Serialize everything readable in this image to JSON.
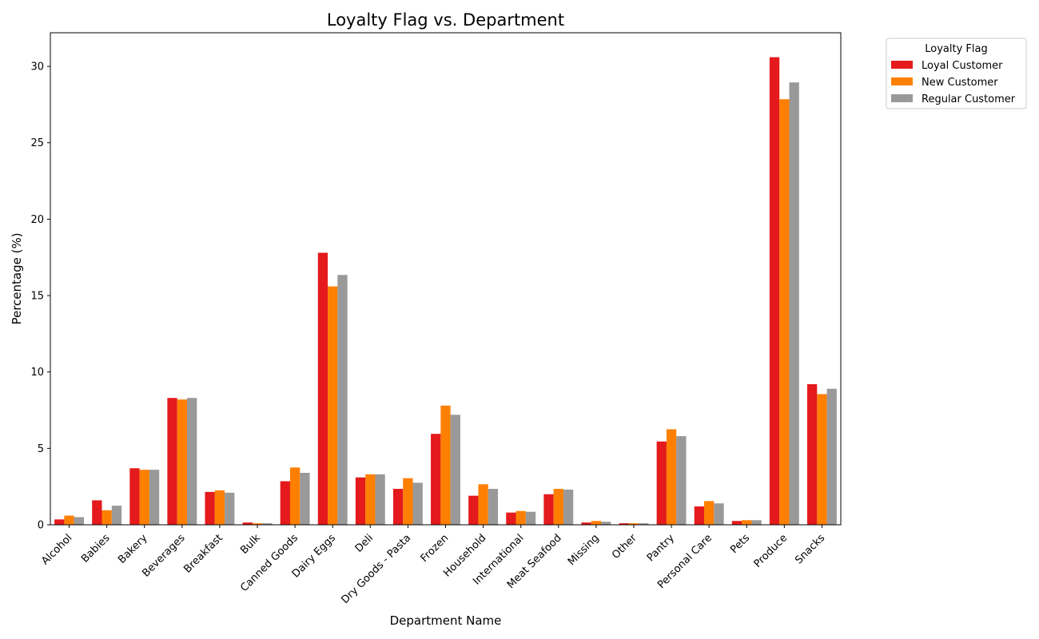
{
  "chart_data": {
    "type": "bar",
    "title": "Loyalty Flag vs. Department",
    "xlabel": "Department Name",
    "ylabel": "Percentage (%)",
    "ylim": [
      0,
      32.2
    ],
    "yticks": [
      0,
      5,
      10,
      15,
      20,
      25,
      30
    ],
    "grid": false,
    "legend": {
      "title": "Loyalty Flag",
      "placement": "outside-top-right"
    },
    "categories": [
      "Alcohol",
      "Babies",
      "Bakery",
      "Beverages",
      "Breakfast",
      "Bulk",
      "Canned Goods",
      "Dairy Eggs",
      "Deli",
      "Dry Goods - Pasta",
      "Frozen",
      "Household",
      "International",
      "Meat Seafood",
      "Missing",
      "Other",
      "Pantry",
      "Personal Care",
      "Pets",
      "Produce",
      "Snacks"
    ],
    "series": [
      {
        "name": "Loyal Customer",
        "color": "#e41a1c",
        "values": [
          0.35,
          1.6,
          3.7,
          8.3,
          2.15,
          0.15,
          2.85,
          17.8,
          3.1,
          2.35,
          5.95,
          1.9,
          0.8,
          2.0,
          0.15,
          0.1,
          5.45,
          1.2,
          0.25,
          30.6,
          9.2
        ]
      },
      {
        "name": "New Customer",
        "color": "#ff7f00",
        "values": [
          0.6,
          0.95,
          3.6,
          8.2,
          2.25,
          0.1,
          3.75,
          15.6,
          3.3,
          3.05,
          7.8,
          2.65,
          0.9,
          2.35,
          0.25,
          0.1,
          6.25,
          1.55,
          0.3,
          27.85,
          8.55
        ]
      },
      {
        "name": "Regular Customer",
        "color": "#999999",
        "values": [
          0.5,
          1.25,
          3.6,
          8.3,
          2.1,
          0.1,
          3.4,
          16.35,
          3.3,
          2.75,
          7.2,
          2.35,
          0.85,
          2.3,
          0.2,
          0.1,
          5.8,
          1.4,
          0.3,
          28.95,
          8.9
        ]
      }
    ]
  }
}
